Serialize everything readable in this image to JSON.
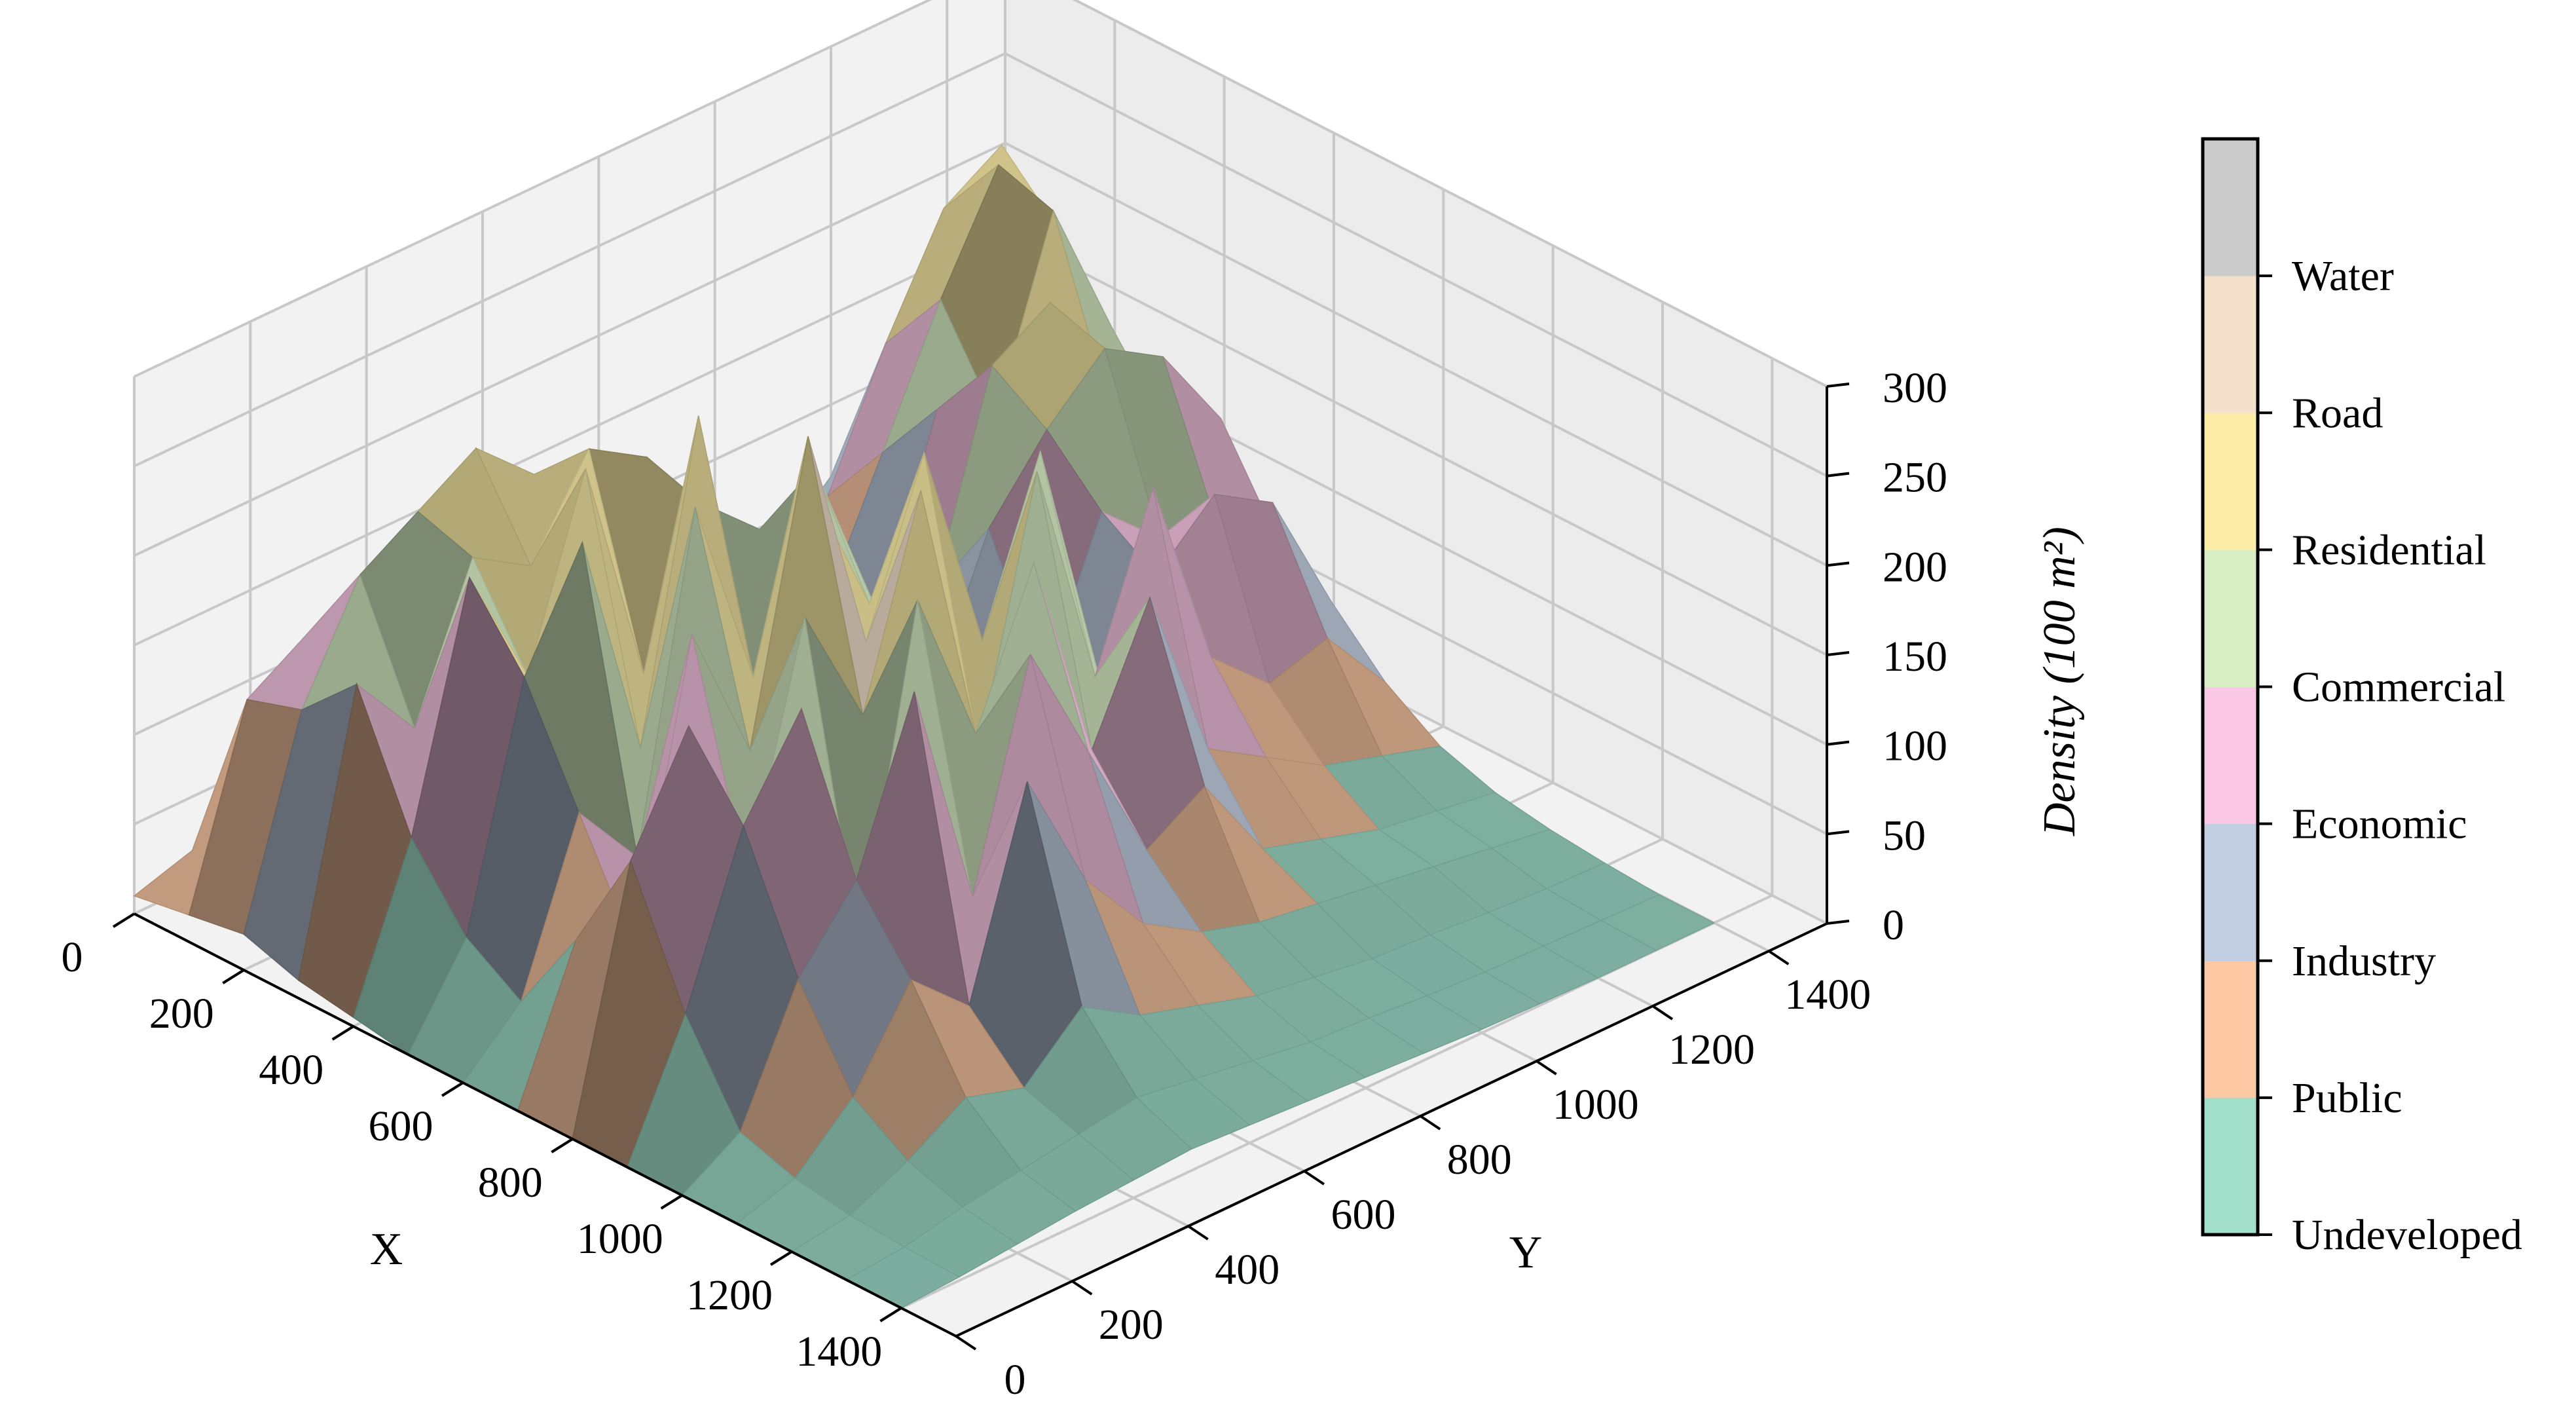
{
  "chart_data": {
    "type": "surface3d",
    "title": "",
    "xlabel": "X",
    "ylabel": "Y",
    "zlabel": "Density (100 m²)",
    "xlim": [
      0,
      1500
    ],
    "ylim": [
      0,
      1500
    ],
    "zlim": [
      0,
      300
    ],
    "x_ticks": [
      "0",
      "200",
      "400",
      "600",
      "800",
      "1000",
      "1200",
      "1400"
    ],
    "y_ticks": [
      "0",
      "200",
      "400",
      "600",
      "800",
      "1000",
      "1200",
      "1400"
    ],
    "z_ticks": [
      "0",
      "50",
      "100",
      "150",
      "200",
      "250",
      "300"
    ],
    "grid": true,
    "x": [
      0,
      100,
      200,
      300,
      400,
      500,
      600,
      700,
      800,
      900,
      1000,
      1100,
      1200,
      1300,
      1400
    ],
    "y": [
      0,
      100,
      200,
      300,
      400,
      500,
      600,
      700,
      800,
      900,
      1000,
      1100,
      1200,
      1300,
      1400
    ],
    "z": [
      [
        10,
        20,
        30,
        25,
        40,
        55,
        35,
        20,
        15,
        5,
        10,
        30,
        60,
        45,
        20
      ],
      [
        15,
        120,
        140,
        150,
        130,
        110,
        90,
        60,
        40,
        25,
        35,
        80,
        150,
        210,
        230
      ],
      [
        20,
        130,
        190,
        210,
        230,
        200,
        150,
        120,
        90,
        60,
        50,
        120,
        190,
        250,
        200
      ],
      [
        10,
        160,
        120,
        200,
        180,
        230,
        210,
        90,
        50,
        30,
        60,
        160,
        140,
        240,
        160
      ],
      [
        5,
        90,
        220,
        150,
        250,
        120,
        200,
        170,
        60,
        40,
        90,
        200,
        220,
        150,
        120
      ],
      [
        0,
        50,
        180,
        240,
        110,
        280,
        90,
        220,
        130,
        60,
        140,
        180,
        210,
        190,
        140
      ],
      [
        0,
        30,
        120,
        80,
        260,
        150,
        240,
        160,
        200,
        80,
        70,
        150,
        120,
        110,
        90
      ],
      [
        0,
        80,
        60,
        220,
        140,
        300,
        170,
        260,
        140,
        230,
        90,
        130,
        160,
        140,
        70
      ],
      [
        0,
        140,
        200,
        100,
        230,
        160,
        270,
        110,
        250,
        120,
        210,
        100,
        70,
        80,
        40
      ],
      [
        0,
        70,
        160,
        210,
        60,
        240,
        150,
        230,
        110,
        180,
        80,
        60,
        40,
        30,
        20
      ],
      [
        0,
        20,
        90,
        130,
        220,
        90,
        210,
        140,
        70,
        90,
        40,
        30,
        20,
        15,
        10
      ],
      [
        0,
        10,
        40,
        90,
        60,
        170,
        100,
        60,
        40,
        30,
        25,
        20,
        15,
        10,
        5
      ],
      [
        0,
        5,
        20,
        40,
        30,
        60,
        40,
        30,
        20,
        15,
        10,
        8,
        5,
        3,
        2
      ],
      [
        0,
        3,
        10,
        15,
        20,
        25,
        20,
        15,
        10,
        8,
        5,
        3,
        2,
        1,
        0
      ],
      [
        0,
        2,
        5,
        8,
        10,
        12,
        10,
        8,
        6,
        4,
        2,
        1,
        0,
        0,
        0
      ]
    ],
    "colorbar": {
      "labels": [
        "Undeveloped",
        "Public",
        "Industry",
        "Economic",
        "Commercial",
        "Residential",
        "Road",
        "Water"
      ],
      "colors": [
        "#a2e0cc",
        "#fcc9a4",
        "#c2cfe2",
        "#fac7e4",
        "#d8eec5",
        "#fbeda7",
        "#f4e1cc",
        "#cbcbcb"
      ]
    }
  }
}
